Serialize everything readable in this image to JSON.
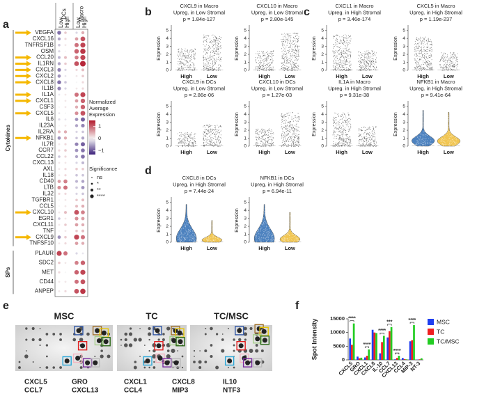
{
  "panel_a": {
    "label": "a",
    "cell_types": [
      "DCs",
      "Macro"
    ],
    "column_labels": [
      "Low",
      "High",
      "Low",
      "High"
    ],
    "groups": [
      {
        "name": "Cytokines",
        "rows": [
          {
            "gene": "VEGFA",
            "arrow": true,
            "values": [
              -0.8,
              0.3,
              -0.2,
              0.5
            ]
          },
          {
            "gene": "CXCL16",
            "arrow": false,
            "values": [
              -0.5,
              0.2,
              0.6,
              1.1
            ]
          },
          {
            "gene": "TNFRSF1B",
            "arrow": false,
            "values": [
              -0.3,
              0.1,
              0.9,
              1.2
            ]
          },
          {
            "gene": "OSM",
            "arrow": false,
            "values": [
              -0.2,
              0,
              1.0,
              1.3
            ]
          },
          {
            "gene": "CCL20",
            "arrow": true,
            "values": [
              -0.4,
              0.4,
              0.8,
              1.2
            ]
          },
          {
            "gene": "IL1RN",
            "arrow": true,
            "values": [
              -0.5,
              0.3,
              1.1,
              1.4
            ]
          },
          {
            "gene": "CXCL3",
            "arrow": true,
            "values": [
              -0.7,
              -0.2,
              0.2,
              0.4
            ]
          },
          {
            "gene": "CXCL2",
            "arrow": true,
            "values": [
              -0.6,
              -0.1,
              0.1,
              0.3
            ]
          },
          {
            "gene": "CXCL8",
            "arrow": true,
            "values": [
              -0.8,
              -0.3,
              0,
              0.2
            ]
          },
          {
            "gene": "IL1B",
            "arrow": false,
            "values": [
              -0.7,
              -0.2,
              0.1,
              0.2
            ]
          },
          {
            "gene": "IL1A",
            "arrow": true,
            "values": [
              -0.1,
              0.1,
              0.9,
              1.2
            ]
          },
          {
            "gene": "CXCL1",
            "arrow": true,
            "values": [
              0,
              0.1,
              0.6,
              1.0
            ]
          },
          {
            "gene": "CSF3",
            "arrow": false,
            "values": [
              0,
              0.1,
              0.5,
              1.0
            ]
          },
          {
            "gene": "CXCL5",
            "arrow": true,
            "values": [
              -0.1,
              0,
              0.7,
              1.1
            ]
          },
          {
            "gene": "IL6",
            "arrow": false,
            "values": [
              -0.2,
              -0.1,
              -0.6,
              -0.9
            ]
          },
          {
            "gene": "IL23A",
            "arrow": false,
            "values": [
              0,
              0.1,
              -0.5,
              -0.7
            ]
          },
          {
            "gene": "IL2RA",
            "arrow": false,
            "values": [
              0.4,
              0.5,
              -0.2,
              -0.3
            ]
          },
          {
            "gene": "NFKB1",
            "arrow": true,
            "values": [
              -0.6,
              0.5,
              -0.3,
              -0.5
            ]
          },
          {
            "gene": "IL7R",
            "arrow": false,
            "values": [
              0.1,
              0.2,
              -0.7,
              -0.9
            ]
          },
          {
            "gene": "CCR7",
            "arrow": false,
            "values": [
              0.2,
              0.3,
              -0.6,
              -0.8
            ]
          },
          {
            "gene": "CCL22",
            "arrow": false,
            "values": [
              -0.3,
              0.2,
              -0.5,
              -0.8
            ]
          },
          {
            "gene": "CXCL13",
            "arrow": false,
            "values": [
              0.1,
              0.1,
              -0.2,
              -0.4
            ]
          },
          {
            "gene": "AXL",
            "arrow": false,
            "values": [
              0.1,
              0.2,
              0.3,
              0.3
            ]
          },
          {
            "gene": "IL18",
            "arrow": false,
            "values": [
              0.1,
              0.2,
              -0.3,
              -0.3
            ]
          },
          {
            "gene": "CD40",
            "arrow": false,
            "values": [
              0.6,
              0.8,
              -0.4,
              -0.5
            ]
          },
          {
            "gene": "LTB",
            "arrow": false,
            "values": [
              0.7,
              0.9,
              -0.3,
              -0.6
            ]
          },
          {
            "gene": "IL32",
            "arrow": false,
            "values": [
              0.2,
              0.2,
              -0.2,
              -0.3
            ]
          },
          {
            "gene": "TGFBR1",
            "arrow": false,
            "values": [
              0,
              0.1,
              0.3,
              0.4
            ]
          },
          {
            "gene": "CCL5",
            "arrow": false,
            "values": [
              0,
              0.1,
              0.4,
              0.5
            ]
          },
          {
            "gene": "CXCL10",
            "arrow": true,
            "values": [
              0.1,
              0.4,
              1.1,
              0.8
            ]
          },
          {
            "gene": "EGR1",
            "arrow": false,
            "values": [
              -0.3,
              0.1,
              0.7,
              0.6
            ]
          },
          {
            "gene": "CXCL11",
            "arrow": false,
            "values": [
              0.1,
              0.3,
              0.6,
              0.5
            ]
          },
          {
            "gene": "TNF",
            "arrow": false,
            "values": [
              0,
              0.1,
              0.3,
              0.4
            ]
          },
          {
            "gene": "CXCL9",
            "arrow": true,
            "values": [
              -0.6,
              0.3,
              1.2,
              0.9
            ]
          },
          {
            "gene": "TNFSF10",
            "arrow": false,
            "values": [
              0.1,
              0.2,
              0.6,
              0.5
            ]
          }
        ]
      },
      {
        "name": "SPs",
        "rows": [
          {
            "gene": "PLAUR",
            "arrow": false,
            "values": [
              1.2,
              0.9,
              -0.2,
              -0.1
            ]
          },
          {
            "gene": "SDC2",
            "arrow": false,
            "values": [
              0.3,
              0.1,
              0.8,
              1.0
            ]
          },
          {
            "gene": "MET",
            "arrow": false,
            "values": [
              0.2,
              0,
              1.0,
              1.2
            ]
          },
          {
            "gene": "CD44",
            "arrow": false,
            "values": [
              0.1,
              0.1,
              0.9,
              1.1
            ]
          },
          {
            "gene": "ANPEP",
            "arrow": false,
            "values": [
              0.1,
              0.2,
              1.1,
              1.3
            ]
          }
        ]
      }
    ],
    "color_legend_title": [
      "Normalized",
      "Average",
      "Expression"
    ],
    "color_lim": [
      -1.3,
      1.5
    ],
    "color_ticks": [
      1,
      0,
      {
        "value": -1,
        "label": "−1"
      }
    ],
    "significance_title": "Significance",
    "significance_levels": [
      "ns",
      "*",
      "**",
      "****"
    ]
  },
  "violin_panels": [
    {
      "label": "b",
      "plots": [
        {
          "title": [
            "CXCL9 in Macro",
            "Upreg. in Low Stromal",
            "p = 1.84e-127"
          ],
          "y_label": "Expression",
          "categories": [
            "High",
            "Low"
          ],
          "ylim": [
            0,
            5.5
          ],
          "yticks": [
            0,
            1,
            2,
            3,
            4,
            5
          ]
        },
        {
          "title": [
            "CXCL10 in Macro",
            "Upreg. in Low Stromal",
            "p = 2.80e-145"
          ],
          "y_label": "Expression",
          "categories": [
            "High",
            "Low"
          ],
          "ylim": [
            0,
            5.5
          ],
          "yticks": [
            0,
            1,
            2,
            3,
            4,
            5
          ]
        },
        {
          "title": [
            "CXCL9 in DCs",
            "Upreg. in Low Stromal",
            "p = 2.86e-06"
          ],
          "y_label": "Expression",
          "categories": [
            "High",
            "Low"
          ],
          "ylim": [
            0,
            5.5
          ],
          "yticks": [
            0,
            1,
            2,
            3,
            4,
            5
          ]
        },
        {
          "title": [
            "CXCL10 in DCs",
            "Upreg. in Low Stromal",
            "p = 1.27e-03"
          ],
          "y_label": "Expression",
          "categories": [
            "High",
            "Low"
          ],
          "ylim": [
            0,
            5.5
          ],
          "yticks": [
            0,
            1,
            2,
            3,
            4,
            5
          ]
        }
      ]
    },
    {
      "label": "c",
      "plots": [
        {
          "title": [
            "CXCL1 in Macro",
            "Upreg. in High Stromal",
            "p = 3.46e-174"
          ],
          "y_label": "Expression",
          "categories": [
            "High",
            "Low"
          ],
          "ylim": [
            0,
            5.5
          ],
          "yticks": [
            0,
            1,
            2,
            3,
            4,
            5
          ]
        },
        {
          "title": [
            "CXCL5 in Macro",
            "Upreg. in High Stromal",
            "p = 1.19e-237"
          ],
          "y_label": "Expression",
          "categories": [
            "High",
            "Low"
          ],
          "ylim": [
            0,
            5.5
          ],
          "yticks": [
            0,
            1,
            2,
            3,
            4,
            5
          ]
        },
        {
          "title": [
            "IL1A in Macro",
            "Upreg. in High Stromal",
            "p = 9.31e-38"
          ],
          "y_label": "Expression",
          "categories": [
            "High",
            "Low"
          ],
          "ylim": [
            0,
            5.5
          ],
          "yticks": [
            0,
            1,
            2,
            3,
            4,
            5
          ]
        },
        {
          "title": [
            "NFKB1 in Macro",
            "Upreg. in High Stromal",
            "p = 9.41e-64"
          ],
          "y_label": "Expression",
          "categories": [
            "High",
            "Low"
          ],
          "ylim": [
            0,
            5.5
          ],
          "yticks": [
            0,
            1,
            2,
            3,
            4,
            5
          ],
          "violin_colors": [
            "#3a74b8",
            "#f0c040"
          ]
        }
      ]
    },
    {
      "label": "d",
      "plots": [
        {
          "title": [
            "CXCL8 in DCs",
            "Upreg. in High Stromal",
            "p = 7.44e-24"
          ],
          "y_label": "Expression",
          "categories": [
            "High",
            "Low"
          ],
          "ylim": [
            0,
            5.5
          ],
          "yticks": [
            0,
            1,
            2,
            3,
            4,
            5
          ],
          "violin_colors": [
            "#3a74b8",
            "#f0c040"
          ]
        },
        {
          "title": [
            "NFKB1 in DCs",
            "Upreg. in High Stromal",
            "p = 6.94e-11"
          ],
          "y_label": "Expression",
          "categories": [
            "High",
            "Low"
          ],
          "ylim": [
            0,
            5.5
          ],
          "yticks": [
            0,
            1,
            2,
            3,
            4,
            5
          ],
          "violin_colors": [
            "#3a74b8",
            "#f0c040"
          ]
        }
      ]
    }
  ],
  "panel_e": {
    "label": "e",
    "arrays": [
      "MSC",
      "TC",
      "TC/MSC"
    ],
    "legend": [
      {
        "label": "CXCL5",
        "color": "#2f55a4"
      },
      {
        "label": "GRO",
        "color": "#a0712a"
      },
      {
        "label": "CXCL1",
        "color": "#e8c600"
      },
      {
        "label": "CXCL8",
        "color": "#a8d08d"
      },
      {
        "label": "IL10",
        "color": "#2e6b1a"
      },
      {
        "label": "CCL7",
        "color": "#e02020"
      },
      {
        "label": "CXCL13",
        "color": "#2aa7d8"
      },
      {
        "label": "CCL4",
        "color": "#f4b6c2"
      },
      {
        "label": "MIP3",
        "color": "#7a2da0"
      },
      {
        "label": "NTF3",
        "color": "#bbbbbb"
      }
    ]
  },
  "chart_data": {
    "type": "bar",
    "panel_label": "f",
    "y_label": "Spot Intensity",
    "categories": [
      "CXCL5",
      "GRO",
      "CXCL1",
      "CXCL8",
      "IL-10",
      "CCL7",
      "CXCL13",
      "CCL4",
      "MIP-3",
      "NT-3"
    ],
    "series": [
      {
        "name": "MSC",
        "color": "#1f3ff0",
        "values": [
          7800,
          1200,
          900,
          11000,
          2400,
          8200,
          200,
          700,
          6800,
          100
        ]
      },
      {
        "name": "TC",
        "color": "#f01f1f",
        "values": [
          5500,
          600,
          1500,
          10000,
          6500,
          10500,
          700,
          300,
          7200,
          200
        ]
      },
      {
        "name": "TC/MSC",
        "color": "#22cc22",
        "values": [
          13300,
          800,
          3800,
          9800,
          8800,
          12000,
          1500,
          200,
          12700,
          600
        ]
      }
    ],
    "ylim": [
      0,
      15000
    ],
    "yticks": [
      0,
      5000,
      10000,
      15000
    ],
    "annotations": [
      {
        "category": "CXCL5",
        "text": "****"
      },
      {
        "category": "CXCL1",
        "text": "****"
      },
      {
        "category": "IL-10",
        "text": "****"
      },
      {
        "category": "CCL7",
        "text": "***"
      },
      {
        "category": "CXCL13",
        "text": "****"
      },
      {
        "category": "MIP-3",
        "text": "****"
      }
    ]
  }
}
